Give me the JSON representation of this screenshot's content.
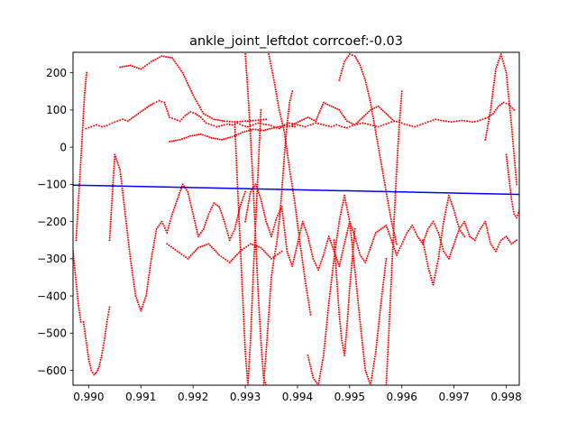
{
  "chart_data": {
    "type": "scatter",
    "title": "ankle_joint_leftdot corrcoef:-0.03",
    "xlabel": "",
    "ylabel": "",
    "xlim": [
      0.9897,
      0.99825
    ],
    "ylim": [
      -640,
      255
    ],
    "x_ticks": [
      0.99,
      0.991,
      0.992,
      0.993,
      0.994,
      0.995,
      0.996,
      0.997,
      0.998
    ],
    "x_tick_labels": [
      "0.990",
      "0.991",
      "0.992",
      "0.993",
      "0.994",
      "0.995",
      "0.996",
      "0.997",
      "0.998"
    ],
    "y_ticks": [
      -600,
      -500,
      -400,
      -300,
      -200,
      -100,
      0,
      100,
      200
    ],
    "y_tick_labels": [
      "−600",
      "−500",
      "−400",
      "−300",
      "−200",
      "−100",
      "0",
      "100",
      "200"
    ],
    "grid": false,
    "colors": {
      "scatter": "#ff0000",
      "fit_line": "#0000ff"
    },
    "fit_line": {
      "x": [
        0.9897,
        0.99825
      ],
      "y": [
        -102,
        -127
      ]
    },
    "series": [
      {
        "x": [
          0.9897,
          0.98975,
          0.9898,
          0.98985,
          0.9899,
          0.98995,
          0.99,
          0.99005,
          0.9901,
          0.99015,
          0.9902,
          0.99025,
          0.9903,
          0.99035,
          0.9904
        ],
        "y": [
          -280,
          -350,
          -420,
          -470,
          -470,
          -520,
          -570,
          -600,
          -612,
          -605,
          -590,
          -560,
          -520,
          -470,
          -430
        ]
      },
      {
        "x": [
          0.98976,
          0.9898,
          0.98984,
          0.98988,
          0.98992,
          0.98996
        ],
        "y": [
          -250,
          -150,
          -60,
          40,
          140,
          200
        ]
      },
      {
        "x": [
          0.98995,
          0.99005,
          0.99015,
          0.99025,
          0.99035,
          0.99045,
          0.99055,
          0.99065,
          0.99075,
          0.99085,
          0.99095,
          0.99105,
          0.99115,
          0.99125,
          0.99135,
          0.99145,
          0.99155,
          0.99165,
          0.99175,
          0.99185,
          0.99195,
          0.99205,
          0.99215,
          0.99225,
          0.99235,
          0.99245,
          0.99255,
          0.99265,
          0.99275,
          0.99285,
          0.99295,
          0.99305,
          0.99315,
          0.99325,
          0.99335,
          0.99345,
          0.99355,
          0.99365,
          0.99375,
          0.99385,
          0.99395,
          0.99405,
          0.99415,
          0.99425,
          0.99435,
          0.99445,
          0.99455,
          0.99465,
          0.99475,
          0.99485,
          0.99495,
          0.99505,
          0.99515,
          0.99525,
          0.99535,
          0.99545,
          0.99555,
          0.99565,
          0.99575,
          0.99585,
          0.99595,
          0.99605,
          0.99615,
          0.99625,
          0.99635,
          0.99645,
          0.99655,
          0.99665,
          0.99675,
          0.99685,
          0.99695,
          0.99705,
          0.99715,
          0.99725,
          0.99735,
          0.99745,
          0.99755,
          0.99765,
          0.99775,
          0.99785,
          0.99795,
          0.99805,
          0.99815
        ],
        "y": [
          50,
          55,
          60,
          55,
          58,
          65,
          70,
          75,
          70,
          80,
          90,
          100,
          110,
          118,
          125,
          120,
          80,
          75,
          70,
          85,
          95,
          90,
          80,
          65,
          60,
          55,
          58,
          62,
          60,
          65,
          58,
          55,
          60,
          65,
          62,
          60,
          55,
          50,
          60,
          65,
          62,
          58,
          55,
          60,
          65,
          62,
          58,
          55,
          60,
          55,
          52,
          58,
          62,
          65,
          62,
          58,
          55,
          60,
          65,
          70,
          68,
          62,
          58,
          55,
          60,
          65,
          70,
          75,
          72,
          70,
          68,
          70,
          72,
          70,
          68,
          70,
          75,
          80,
          90,
          110,
          120,
          115,
          100
        ]
      },
      {
        "x": [
          0.9906,
          0.9908,
          0.991,
          0.9912,
          0.9914,
          0.9916,
          0.9918,
          0.992,
          0.9922,
          0.9924,
          0.9926,
          0.9928,
          0.993,
          0.9932,
          0.9934
        ],
        "y": [
          215,
          220,
          210,
          230,
          245,
          240,
          200,
          140,
          90,
          75,
          70,
          68,
          70,
          72,
          75
        ]
      },
      {
        "x": [
          0.99155,
          0.99175,
          0.99195,
          0.99215,
          0.99235,
          0.99255,
          0.99275,
          0.99295,
          0.99315,
          0.99335,
          0.99355,
          0.99375,
          0.99395
        ],
        "y": [
          15,
          20,
          30,
          35,
          25,
          20,
          28,
          40,
          48,
          45,
          52,
          58,
          55
        ]
      },
      {
        "x": [
          0.9939,
          0.99405,
          0.9942,
          0.99435,
          0.9945,
          0.99465,
          0.9948,
          0.99495,
          0.9951,
          0.99525,
          0.9954,
          0.99555,
          0.9957,
          0.99585
        ],
        "y": [
          60,
          70,
          80,
          70,
          120,
          110,
          100,
          70,
          60,
          80,
          100,
          110,
          90,
          70
        ]
      },
      {
        "x": [
          0.9904,
          0.9905,
          0.9906,
          0.9907,
          0.9908,
          0.9909,
          0.991,
          0.9911,
          0.9912,
          0.9913,
          0.9914,
          0.9915,
          0.9916,
          0.9917,
          0.9918,
          0.9919,
          0.992,
          0.9921,
          0.9922,
          0.9923,
          0.9924,
          0.9925,
          0.9926,
          0.9927,
          0.9928,
          0.9929,
          0.993
        ],
        "y": [
          -250,
          -20,
          -60,
          -180,
          -300,
          -400,
          -440,
          -400,
          -300,
          -220,
          -200,
          -230,
          -180,
          -140,
          -100,
          -120,
          -180,
          -240,
          -220,
          -180,
          -150,
          -160,
          -200,
          -250,
          -220,
          -160,
          -120
        ]
      },
      {
        "x": [
          0.993,
          0.9931,
          0.9932,
          0.9933,
          0.9934,
          0.9935,
          0.9936,
          0.9937,
          0.9938,
          0.9939,
          0.994,
          0.9941,
          0.9942,
          0.9943,
          0.9944,
          0.9945,
          0.9946,
          0.9947,
          0.9948,
          0.9949,
          0.995,
          0.9951,
          0.9952,
          0.9953,
          0.9954,
          0.9955,
          0.9956,
          0.9957,
          0.9958,
          0.9959,
          0.996,
          0.9961,
          0.9962,
          0.9963,
          0.9964,
          0.9965,
          0.9966,
          0.9967,
          0.9968,
          0.9969,
          0.997,
          0.9971,
          0.9972,
          0.9973,
          0.9974,
          0.9975,
          0.9976,
          0.9977,
          0.9978,
          0.9979,
          0.998,
          0.9981,
          0.9982
        ],
        "y": [
          -200,
          -120,
          -100,
          -140,
          -200,
          -240,
          -190,
          -160,
          -280,
          -320,
          -260,
          -200,
          -240,
          -300,
          -330,
          -290,
          -240,
          -280,
          -320,
          -260,
          -200,
          -240,
          -290,
          -310,
          -270,
          -230,
          -220,
          -210,
          -250,
          -290,
          -260,
          -230,
          -210,
          -240,
          -260,
          -220,
          -200,
          -230,
          -280,
          -300,
          -260,
          -220,
          -200,
          -240,
          -250,
          -220,
          -200,
          -260,
          -280,
          -250,
          -240,
          -260,
          -250
        ]
      },
      {
        "x": [
          0.9915,
          0.9917,
          0.9919,
          0.9921,
          0.9923,
          0.9925,
          0.9927,
          0.9929,
          0.9931,
          0.9933,
          0.9935,
          0.9937
        ],
        "y": [
          -260,
          -280,
          -300,
          -270,
          -260,
          -290,
          -310,
          -280,
          -260,
          -270,
          -300,
          -280
        ]
      },
      {
        "x": [
          0.9928,
          0.99285,
          0.9929,
          0.99295,
          0.993,
          0.99305,
          0.9931,
          0.99315,
          0.9932,
          0.99325,
          0.9933
        ],
        "y": [
          60,
          -100,
          -250,
          -400,
          -550,
          -640,
          -520,
          -350,
          -200,
          -50,
          100
        ]
      },
      {
        "x": [
          0.993,
          0.99305,
          0.9931,
          0.99315,
          0.9932,
          0.99325,
          0.9933,
          0.99335,
          0.9934
        ],
        "y": [
          250,
          150,
          30,
          -100,
          -250,
          -400,
          -520,
          -620,
          -640
        ]
      },
      {
        "x": [
          0.99335,
          0.9934,
          0.99345,
          0.9935,
          0.99355,
          0.9936,
          0.99365,
          0.9937,
          0.99375,
          0.9938,
          0.99385,
          0.9939
        ],
        "y": [
          -640,
          -550,
          -450,
          -350,
          -300,
          -260,
          -200,
          -120,
          -20,
          60,
          120,
          150
        ]
      },
      {
        "x": [
          0.99345,
          0.99355,
          0.99365,
          0.99375,
          0.99385,
          0.99395,
          0.99405,
          0.99415,
          0.99425
        ],
        "y": [
          250,
          180,
          100,
          40,
          -60,
          -150,
          -260,
          -360,
          -450
        ]
      },
      {
        "x": [
          0.9942,
          0.9943,
          0.9944,
          0.9945,
          0.9946,
          0.9947,
          0.9948,
          0.9949,
          0.995,
          0.9951,
          0.9952,
          0.9953,
          0.9954,
          0.9955,
          0.9956,
          0.9957
        ],
        "y": [
          -560,
          -620,
          -640,
          -560,
          -420,
          -300,
          -200,
          -130,
          -200,
          -330,
          -470,
          -600,
          -640,
          -550,
          -420,
          -300
        ]
      },
      {
        "x": [
          0.9947,
          0.99475,
          0.9948,
          0.99485,
          0.9949,
          0.99495,
          0.995,
          0.99505,
          0.9951
        ],
        "y": [
          -250,
          -350,
          -450,
          -520,
          -560,
          -480,
          -380,
          -300,
          -220
        ]
      },
      {
        "x": [
          0.9948,
          0.9949,
          0.995,
          0.9951,
          0.9952,
          0.9953,
          0.9954,
          0.9955,
          0.9956,
          0.9957,
          0.9958,
          0.9959
        ],
        "y": [
          180,
          230,
          250,
          245,
          220,
          180,
          120,
          40,
          -40,
          -120,
          -200,
          -260
        ]
      },
      {
        "x": [
          0.9957,
          0.99575,
          0.9958,
          0.99585,
          0.9959,
          0.99595,
          0.996
        ],
        "y": [
          -640,
          -500,
          -350,
          -200,
          -60,
          60,
          150
        ]
      },
      {
        "x": [
          0.9964,
          0.9965,
          0.9966,
          0.9967,
          0.9968,
          0.9969,
          0.997,
          0.9971,
          0.9972
        ],
        "y": [
          -250,
          -320,
          -370,
          -300,
          -200,
          -130,
          -170,
          -220,
          -240
        ]
      },
      {
        "x": [
          0.9976,
          0.9977,
          0.9978,
          0.9979,
          0.998,
          0.9981,
          0.9982
        ],
        "y": [
          20,
          100,
          210,
          250,
          200,
          60,
          -100
        ]
      },
      {
        "x": [
          0.998,
          0.99805,
          0.9981,
          0.99815,
          0.9982,
          0.99825
        ],
        "y": [
          -20,
          -80,
          -140,
          -180,
          -190,
          -170
        ]
      }
    ]
  }
}
